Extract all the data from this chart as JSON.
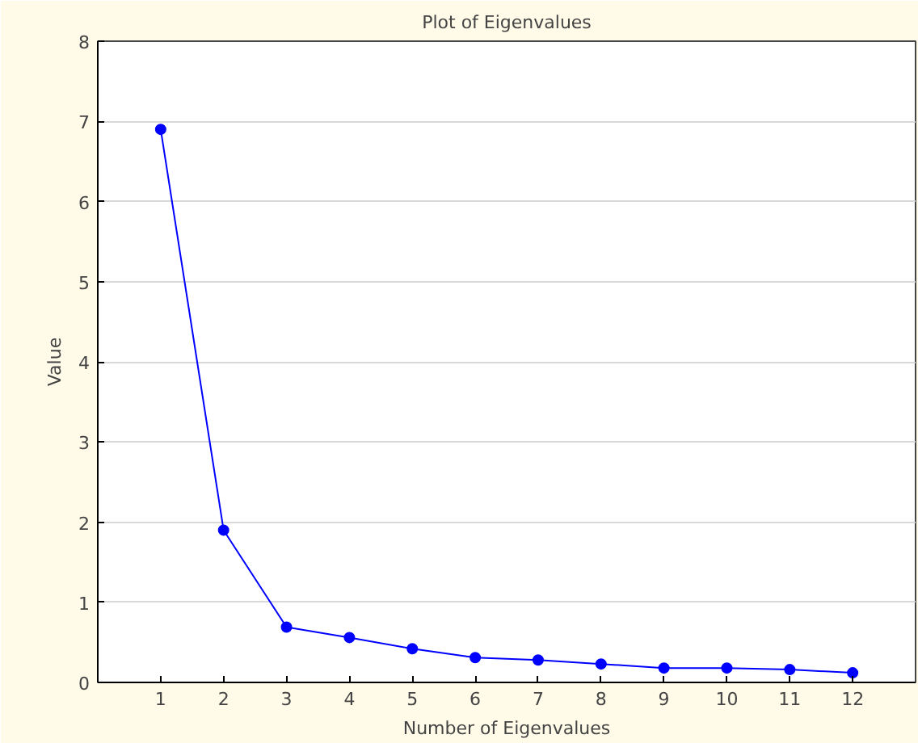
{
  "chart_data": {
    "type": "line",
    "title": "Plot of Eigenvalues",
    "xlabel": "Number of Eigenvalues",
    "ylabel": "Value",
    "x": [
      1,
      2,
      3,
      4,
      5,
      6,
      7,
      8,
      9,
      10,
      11,
      12
    ],
    "series": [
      {
        "color": "#0000ff",
        "values": [
          6.9,
          1.9,
          0.69,
          0.56,
          0.42,
          0.31,
          0.28,
          0.23,
          0.18,
          0.18,
          0.16,
          0.12
        ]
      }
    ],
    "xlim": [
      0,
      13
    ],
    "xticks": [
      1,
      2,
      3,
      4,
      5,
      6,
      7,
      8,
      9,
      10,
      11,
      12
    ],
    "ylim": [
      0,
      8
    ],
    "yticks": [
      0,
      1,
      2,
      3,
      4,
      5,
      6,
      7,
      8
    ],
    "grid": "y",
    "marker": "circle",
    "line_style": "solid"
  }
}
